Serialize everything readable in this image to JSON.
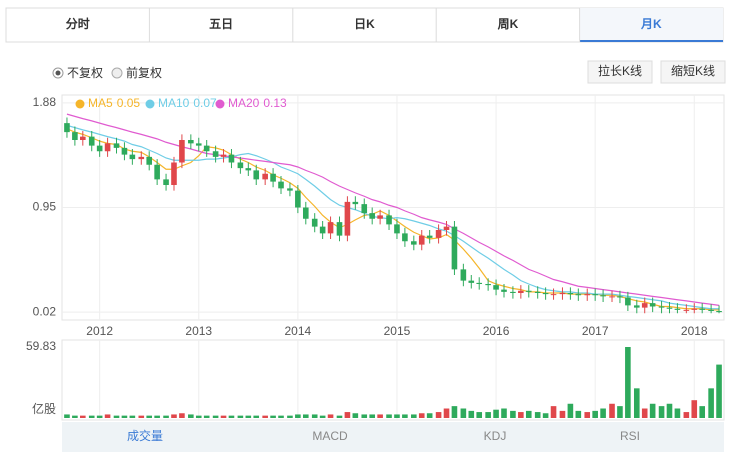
{
  "tabs": [
    "分时",
    "五日",
    "日K",
    "周K",
    "月K"
  ],
  "options": [
    "不复权",
    "前复权"
  ],
  "buttons": [
    "拉长K线",
    "缩短K线"
  ],
  "bottom_tabs": [
    "成交量",
    "MACD",
    "KDJ",
    "RSI"
  ],
  "chart_data": {
    "type": "candlestick",
    "x": [
      2011.67,
      2011.75,
      2011.83,
      2011.92,
      2012,
      2012.08,
      2012.17,
      2012.25,
      2012.33,
      2012.42,
      2012.5,
      2012.58,
      2012.67,
      2012.75,
      2012.83,
      2012.92,
      2013,
      2013.08,
      2013.17,
      2013.25,
      2013.33,
      2013.42,
      2013.5,
      2013.58,
      2013.67,
      2013.75,
      2013.83,
      2013.92,
      2014,
      2014.08,
      2014.17,
      2014.25,
      2014.33,
      2014.42,
      2014.5,
      2014.58,
      2014.67,
      2014.75,
      2014.83,
      2014.92,
      2015,
      2015.08,
      2015.17,
      2015.25,
      2015.33,
      2015.42,
      2015.5,
      2015.58,
      2015.67,
      2015.75,
      2015.83,
      2015.92,
      2016,
      2016.08,
      2016.17,
      2016.25,
      2016.33,
      2016.42,
      2016.5,
      2016.58,
      2016.67,
      2016.75,
      2016.83,
      2016.92,
      2017,
      2017.08,
      2017.17,
      2017.25,
      2017.33,
      2017.42,
      2017.5,
      2017.58,
      2017.67,
      2017.75,
      2017.83,
      2017.92,
      2018,
      2018.08,
      2018.17,
      2018.25
    ],
    "open": [
      1.7,
      1.62,
      1.55,
      1.58,
      1.5,
      1.45,
      1.52,
      1.48,
      1.42,
      1.38,
      1.4,
      1.33,
      1.2,
      1.15,
      1.35,
      1.55,
      1.52,
      1.5,
      1.45,
      1.4,
      1.42,
      1.35,
      1.3,
      1.28,
      1.2,
      1.25,
      1.18,
      1.12,
      1.1,
      0.95,
      0.85,
      0.78,
      0.72,
      0.82,
      0.7,
      1.0,
      0.98,
      0.9,
      0.85,
      0.88,
      0.8,
      0.72,
      0.65,
      0.62,
      0.7,
      0.68,
      0.75,
      0.78,
      0.4,
      0.3,
      0.28,
      0.27,
      0.26,
      0.22,
      0.2,
      0.19,
      0.21,
      0.2,
      0.19,
      0.18,
      0.18,
      0.19,
      0.18,
      0.17,
      0.18,
      0.17,
      0.16,
      0.16,
      0.15,
      0.08,
      0.06,
      0.1,
      0.07,
      0.06,
      0.05,
      0.04,
      0.04,
      0.05,
      0.04,
      0.03
    ],
    "close": [
      1.62,
      1.55,
      1.58,
      1.5,
      1.45,
      1.52,
      1.48,
      1.42,
      1.38,
      1.4,
      1.33,
      1.2,
      1.15,
      1.35,
      1.55,
      1.52,
      1.5,
      1.45,
      1.4,
      1.42,
      1.35,
      1.3,
      1.28,
      1.2,
      1.25,
      1.18,
      1.12,
      1.1,
      0.95,
      0.85,
      0.78,
      0.72,
      0.82,
      0.7,
      1.0,
      0.98,
      0.9,
      0.85,
      0.88,
      0.8,
      0.72,
      0.65,
      0.62,
      0.7,
      0.68,
      0.75,
      0.78,
      0.4,
      0.3,
      0.28,
      0.27,
      0.26,
      0.22,
      0.2,
      0.19,
      0.21,
      0.2,
      0.19,
      0.18,
      0.18,
      0.19,
      0.18,
      0.17,
      0.18,
      0.17,
      0.16,
      0.16,
      0.15,
      0.08,
      0.06,
      0.1,
      0.07,
      0.06,
      0.05,
      0.04,
      0.04,
      0.05,
      0.04,
      0.03,
      0.02
    ],
    "high": [
      1.75,
      1.67,
      1.63,
      1.63,
      1.55,
      1.57,
      1.57,
      1.53,
      1.47,
      1.45,
      1.45,
      1.38,
      1.25,
      1.4,
      1.6,
      1.6,
      1.57,
      1.55,
      1.5,
      1.47,
      1.47,
      1.4,
      1.35,
      1.33,
      1.3,
      1.3,
      1.23,
      1.17,
      1.15,
      1.0,
      0.9,
      0.83,
      0.87,
      0.87,
      1.05,
      1.05,
      1.03,
      0.95,
      0.93,
      0.93,
      0.85,
      0.77,
      0.7,
      0.75,
      0.75,
      0.8,
      0.83,
      0.83,
      0.45,
      0.35,
      0.33,
      0.32,
      0.31,
      0.27,
      0.25,
      0.26,
      0.26,
      0.25,
      0.24,
      0.23,
      0.24,
      0.24,
      0.23,
      0.23,
      0.23,
      0.22,
      0.21,
      0.21,
      0.2,
      0.13,
      0.15,
      0.15,
      0.12,
      0.11,
      0.1,
      0.09,
      0.1,
      0.1,
      0.09,
      0.08
    ],
    "low": [
      1.57,
      1.5,
      1.5,
      1.45,
      1.4,
      1.4,
      1.43,
      1.37,
      1.33,
      1.33,
      1.28,
      1.15,
      1.1,
      1.1,
      1.3,
      1.47,
      1.45,
      1.4,
      1.35,
      1.35,
      1.3,
      1.25,
      1.23,
      1.15,
      1.15,
      1.13,
      1.07,
      1.05,
      0.9,
      0.8,
      0.73,
      0.67,
      0.67,
      0.65,
      0.65,
      0.93,
      0.85,
      0.8,
      0.8,
      0.75,
      0.67,
      0.6,
      0.57,
      0.57,
      0.63,
      0.63,
      0.7,
      0.35,
      0.25,
      0.23,
      0.22,
      0.21,
      0.17,
      0.15,
      0.14,
      0.14,
      0.15,
      0.14,
      0.13,
      0.13,
      0.13,
      0.13,
      0.12,
      0.12,
      0.12,
      0.11,
      0.11,
      0.1,
      0.03,
      0.01,
      0.01,
      0.02,
      0.01,
      0.01,
      0.01,
      0.01,
      0.01,
      0.01,
      0.01,
      0.01
    ],
    "series": [
      {
        "name": "MA5",
        "legend_value": 0.05,
        "color": "#f5b52a",
        "values": [
          1.65,
          1.62,
          1.6,
          1.57,
          1.54,
          1.52,
          1.51,
          1.47,
          1.45,
          1.44,
          1.4,
          1.35,
          1.29,
          1.29,
          1.32,
          1.35,
          1.41,
          1.49,
          1.48,
          1.46,
          1.42,
          1.38,
          1.35,
          1.31,
          1.28,
          1.24,
          1.21,
          1.17,
          1.12,
          1.04,
          0.96,
          0.88,
          0.82,
          0.77,
          0.8,
          0.84,
          0.88,
          0.89,
          0.92,
          0.88,
          0.83,
          0.78,
          0.73,
          0.7,
          0.67,
          0.68,
          0.71,
          0.66,
          0.58,
          0.5,
          0.41,
          0.3,
          0.27,
          0.25,
          0.23,
          0.22,
          0.2,
          0.2,
          0.19,
          0.19,
          0.19,
          0.18,
          0.18,
          0.18,
          0.18,
          0.17,
          0.17,
          0.16,
          0.14,
          0.12,
          0.11,
          0.09,
          0.07,
          0.07,
          0.06,
          0.05,
          0.05,
          0.05,
          0.04,
          0.04
        ]
      },
      {
        "name": "MA10",
        "legend_value": 0.07,
        "color": "#6fcde6",
        "values": [
          1.68,
          1.66,
          1.64,
          1.62,
          1.6,
          1.58,
          1.56,
          1.54,
          1.51,
          1.49,
          1.46,
          1.43,
          1.39,
          1.37,
          1.37,
          1.37,
          1.37,
          1.38,
          1.38,
          1.39,
          1.4,
          1.42,
          1.43,
          1.41,
          1.38,
          1.35,
          1.31,
          1.28,
          1.25,
          1.2,
          1.14,
          1.08,
          1.02,
          0.97,
          0.95,
          0.93,
          0.9,
          0.87,
          0.86,
          0.85,
          0.86,
          0.85,
          0.83,
          0.81,
          0.79,
          0.76,
          0.74,
          0.7,
          0.65,
          0.6,
          0.55,
          0.5,
          0.45,
          0.4,
          0.35,
          0.3,
          0.27,
          0.24,
          0.22,
          0.21,
          0.2,
          0.2,
          0.19,
          0.19,
          0.18,
          0.18,
          0.18,
          0.17,
          0.16,
          0.15,
          0.14,
          0.13,
          0.12,
          0.1,
          0.09,
          0.08,
          0.07,
          0.06,
          0.05,
          0.05
        ]
      },
      {
        "name": "MA20",
        "legend_value": 0.13,
        "color": "#e05bd0",
        "values": [
          1.78,
          1.76,
          1.74,
          1.72,
          1.7,
          1.68,
          1.66,
          1.64,
          1.62,
          1.6,
          1.58,
          1.56,
          1.53,
          1.51,
          1.49,
          1.47,
          1.45,
          1.43,
          1.42,
          1.41,
          1.4,
          1.39,
          1.38,
          1.37,
          1.36,
          1.35,
          1.34,
          1.33,
          1.31,
          1.28,
          1.25,
          1.22,
          1.18,
          1.14,
          1.11,
          1.08,
          1.05,
          1.02,
          1.0,
          0.97,
          0.95,
          0.92,
          0.89,
          0.86,
          0.84,
          0.82,
          0.8,
          0.76,
          0.72,
          0.68,
          0.64,
          0.6,
          0.56,
          0.52,
          0.48,
          0.44,
          0.4,
          0.37,
          0.34,
          0.31,
          0.29,
          0.27,
          0.25,
          0.24,
          0.23,
          0.22,
          0.21,
          0.2,
          0.19,
          0.18,
          0.17,
          0.16,
          0.15,
          0.14,
          0.13,
          0.12,
          0.11,
          0.1,
          0.09,
          0.08
        ]
      }
    ],
    "volume": [
      3,
      2,
      2,
      2,
      2,
      3,
      2,
      2,
      2,
      2,
      2,
      2,
      2,
      3,
      4,
      3,
      2,
      2,
      2,
      2,
      2,
      2,
      2,
      2,
      2,
      2,
      2,
      2,
      3,
      3,
      3,
      2,
      3,
      2,
      5,
      4,
      3,
      3,
      3,
      3,
      3,
      3,
      3,
      4,
      4,
      5,
      8,
      10,
      8,
      6,
      5,
      5,
      7,
      8,
      6,
      5,
      6,
      5,
      4,
      10,
      6,
      12,
      6,
      5,
      6,
      8,
      12,
      10,
      59.83,
      25,
      8,
      12,
      10,
      12,
      8,
      5,
      15,
      10,
      25,
      45
    ],
    "volume_unit": "亿股",
    "volume_ylim": [
      0,
      59.83
    ],
    "volume_yticks": [
      59.83
    ],
    "up_color": "#e0474b",
    "down_color": "#2eaa5c",
    "xlim": [
      2011.62,
      2018.3
    ],
    "xticks": [
      2012,
      2013,
      2014,
      2015,
      2016,
      2017,
      2018
    ],
    "ylim": [
      -0.05,
      1.95
    ],
    "yticks": [
      0.02,
      0.95,
      1.88
    ],
    "grid": true
  }
}
